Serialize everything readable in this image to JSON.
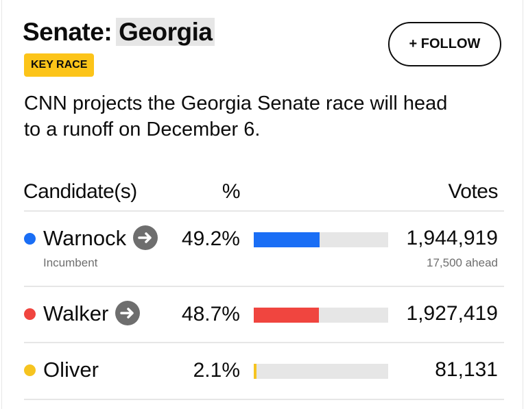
{
  "header": {
    "title_prefix": "Senate:",
    "title_state": "Georgia",
    "badge": "KEY RACE",
    "follow_button": "+ FOLLOW"
  },
  "description": "CNN projects the Georgia Senate race will head to a runoff on December 6.",
  "table": {
    "columns": [
      "Candidate(s)",
      "%",
      "Votes"
    ],
    "xlim": [
      0,
      100
    ],
    "rows": [
      {
        "name": "Warnock",
        "color": "#1a6ef5",
        "subtitle": "Incumbent",
        "percent": 49.2,
        "percent_label": "49.2%",
        "votes": "1,944,919",
        "note": "17,500 ahead",
        "arrow": true
      },
      {
        "name": "Walker",
        "color": "#f0453f",
        "percent": 48.7,
        "percent_label": "48.7%",
        "votes": "1,927,419",
        "arrow": true
      },
      {
        "name": "Oliver",
        "color": "#f6c420",
        "percent": 2.1,
        "percent_label": "2.1%",
        "votes": "81,131",
        "arrow": false
      }
    ]
  }
}
